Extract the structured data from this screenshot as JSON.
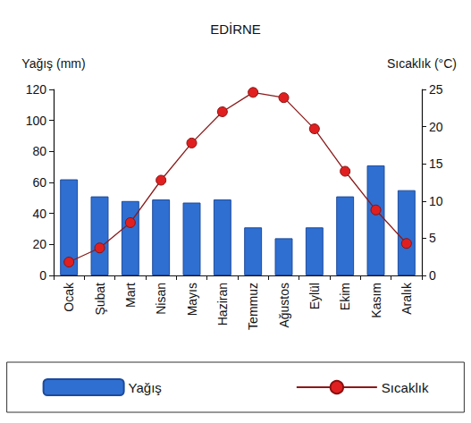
{
  "chart_data": {
    "type": "bar",
    "title": "EDİRNE",
    "categories": [
      "Ocak",
      "Şubat",
      "Mart",
      "Nisan",
      "Mayıs",
      "Haziran",
      "Temmuz",
      "Ağustos",
      "Eylül",
      "Ekim",
      "Kasım",
      "Aralık"
    ],
    "series": [
      {
        "name": "Yağış",
        "type": "bar",
        "color": "#2f6fd1",
        "values": [
          62,
          51,
          48,
          49,
          47,
          49,
          31,
          24,
          31,
          51,
          71,
          55
        ]
      },
      {
        "name": "Sıcaklık",
        "type": "line",
        "color": "#e02020",
        "marker": "circle",
        "axis": "y2",
        "values": [
          1.8,
          3.7,
          7.1,
          12.8,
          17.8,
          22,
          24.6,
          23.9,
          19.7,
          14,
          8.8,
          4.3
        ]
      }
    ],
    "y_label": "Yağış (mm)",
    "y2_label": "Sıcaklık (°C)",
    "ylim": [
      0,
      120
    ],
    "yticks": [
      0,
      20,
      40,
      60,
      80,
      100,
      120
    ],
    "y2lim": [
      0,
      25
    ],
    "y2ticks": [
      0,
      5,
      10,
      15,
      20,
      25
    ],
    "grid": false,
    "legend": "bottom"
  }
}
